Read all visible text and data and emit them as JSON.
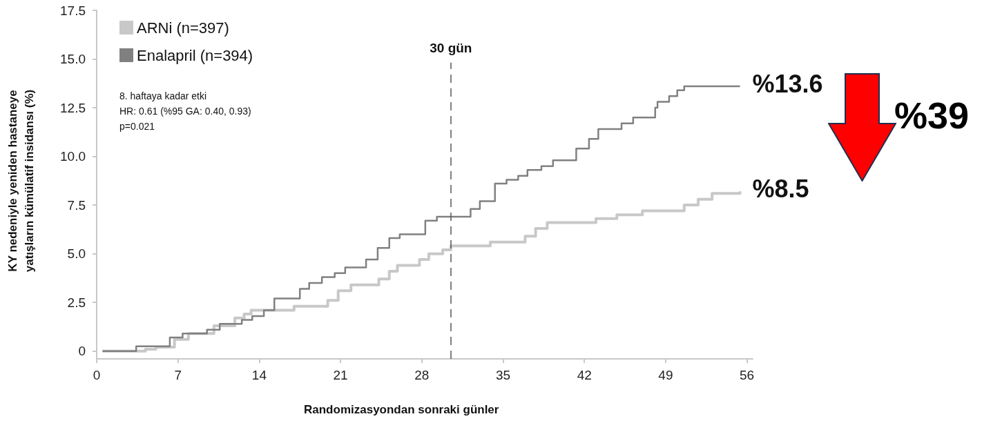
{
  "chart_data": {
    "type": "step",
    "xlabel": "Randomizasyondan sonraki günler",
    "ylabel": "KY nedeniyle yeniden hastaneye\nyatışların kümülatif insidansı (%)",
    "xlim": [
      0,
      56.5
    ],
    "xticks": [
      0,
      7,
      14,
      21,
      28,
      35,
      42,
      49,
      56
    ],
    "ylim": [
      -0.4,
      17.5
    ],
    "yticks": [
      0,
      2.5,
      {
        "value": 5,
        "label": "5.0"
      },
      7.5,
      {
        "value": 10,
        "label": "10.0"
      },
      12.5,
      {
        "value": 15,
        "label": "15.0"
      },
      17.5
    ],
    "grid": false,
    "legend": "top left",
    "series": [
      {
        "name": "ARNi (n=397)",
        "color": "#c8c8c8",
        "x": [
          0.5,
          4.2,
          5.1,
          6.7,
          7.9,
          10.1,
          11.9,
          12.7,
          13.3,
          17,
          19.9,
          20.8,
          21.9,
          24.3,
          25.2,
          25.9,
          27.8,
          28.6,
          29.8,
          30.5,
          33.9,
          36.9,
          37.8,
          38.8,
          43,
          44.8,
          47,
          50.6,
          51.8,
          53,
          55.4
        ],
        "values": [
          0,
          0.1,
          0.2,
          0.6,
          0.9,
          1.3,
          1.7,
          1.9,
          2.1,
          2.3,
          2.6,
          3.1,
          3.4,
          3.7,
          4.1,
          4.4,
          4.7,
          5.0,
          5.2,
          5.4,
          5.6,
          5.9,
          6.3,
          6.6,
          6.8,
          7.0,
          7.2,
          7.5,
          7.8,
          8.1,
          8.2
        ]
      },
      {
        "name": "Enalapril (n=394)",
        "color": "#808080",
        "x": [
          0.5,
          3.4,
          6.3,
          7.4,
          9.5,
          10.6,
          12.5,
          13.4,
          14.4,
          15.3,
          17.5,
          18.3,
          19.4,
          20.5,
          21.4,
          23.2,
          24.2,
          25.2,
          26.1,
          28.3,
          29.3,
          32.2,
          33,
          34.3,
          35.3,
          36.3,
          37.1,
          38.3,
          39.3,
          41.3,
          42.4,
          43.2,
          45.2,
          46.2,
          48.1,
          48.3,
          49.3,
          50,
          50.6,
          55.4
        ],
        "values": [
          0,
          0.25,
          0.7,
          0.9,
          1.1,
          1.4,
          1.6,
          1.8,
          2.1,
          2.7,
          3.2,
          3.5,
          3.8,
          4.0,
          4.3,
          4.7,
          5.3,
          5.8,
          6.0,
          6.7,
          6.9,
          7.3,
          7.7,
          8.6,
          8.8,
          9.0,
          9.3,
          9.5,
          9.8,
          10.4,
          10.9,
          11.4,
          11.7,
          12.0,
          12.5,
          12.8,
          13.1,
          13.4,
          13.6,
          13.6
        ]
      }
    ],
    "ref_lines": [
      {
        "axis": "x",
        "value": 30.5,
        "label": "30 gün",
        "color": "#555555",
        "line_style": "dashed"
      }
    ],
    "annotations": [
      "8. haftaya kadar etki\nHR: 0.61 (%95 GA: 0.40, 0.93)\np=0.021",
      {
        "text": "%13.6",
        "x": 55.4,
        "y": 13.6
      },
      {
        "text": "%8.5",
        "x": 55.4,
        "y": 8.2
      },
      "%39"
    ]
  }
}
